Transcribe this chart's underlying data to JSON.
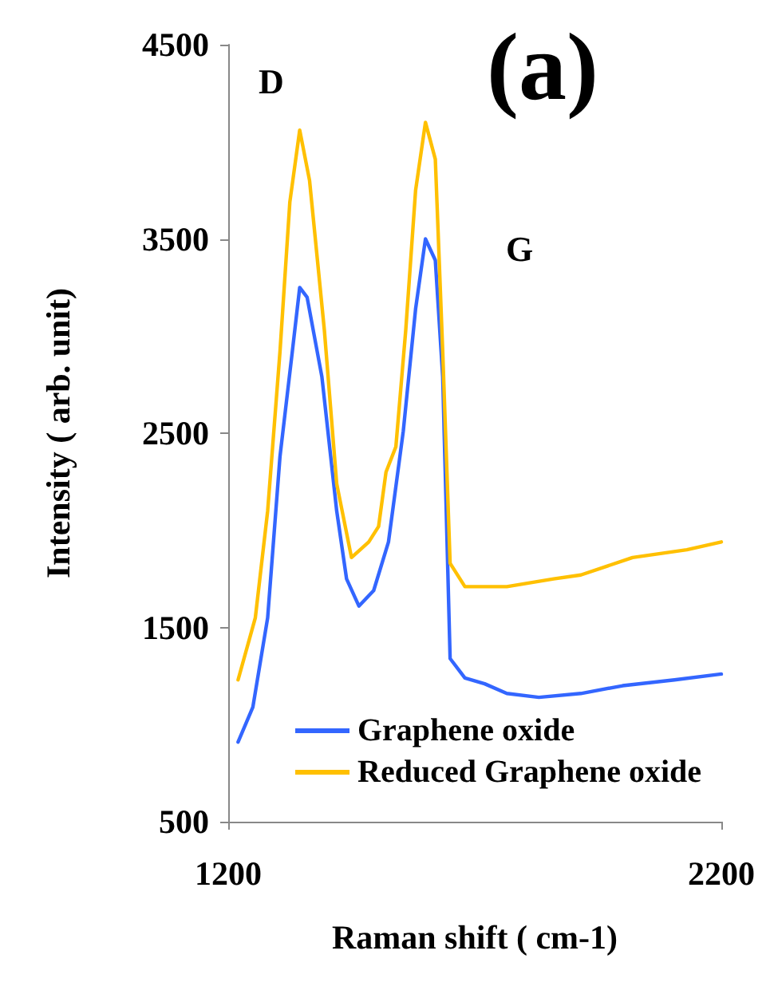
{
  "chart_data": {
    "type": "line",
    "xlabel": "Raman shift ( cm-1)",
    "ylabel": "Intensity ( arb. unit)",
    "annotations": [
      "D",
      "G",
      "(a)"
    ],
    "xlim": [
      1200,
      2200
    ],
    "xticks": [
      1200,
      2200
    ],
    "ylim": [
      500,
      4500
    ],
    "yticks": [
      500,
      1500,
      2500,
      3500,
      4500
    ],
    "grid": false,
    "legend": "bottom",
    "marker": "none",
    "line_style": "solid",
    "series": [
      {
        "name": "Graphene oxide",
        "color": "#3366ff",
        "x": [
          1220,
          1250,
          1280,
          1305,
          1330,
          1345,
          1360,
          1390,
          1420,
          1440,
          1465,
          1495,
          1525,
          1555,
          1580,
          1600,
          1620,
          1635,
          1650,
          1680,
          1720,
          1765,
          1830,
          1915,
          2000,
          2105,
          2200
        ],
        "values": [
          910,
          1090,
          1550,
          2380,
          2920,
          3250,
          3200,
          2790,
          2100,
          1750,
          1610,
          1690,
          1940,
          2510,
          3140,
          3500,
          3390,
          2790,
          1340,
          1240,
          1210,
          1160,
          1140,
          1160,
          1200,
          1230,
          1260
        ]
      },
      {
        "name": "Reduced Graphene oxide",
        "color": "#ffc000",
        "x": [
          1220,
          1255,
          1280,
          1305,
          1325,
          1345,
          1365,
          1395,
          1420,
          1450,
          1485,
          1505,
          1520,
          1540,
          1560,
          1580,
          1600,
          1620,
          1635,
          1650,
          1680,
          1765,
          1860,
          1915,
          2020,
          2130,
          2200
        ],
        "values": [
          1230,
          1550,
          2100,
          2920,
          3690,
          4060,
          3800,
          3030,
          2240,
          1860,
          1940,
          2020,
          2300,
          2430,
          3030,
          3750,
          4100,
          3910,
          2920,
          1830,
          1710,
          1710,
          1750,
          1770,
          1860,
          1900,
          1940
        ]
      }
    ]
  }
}
